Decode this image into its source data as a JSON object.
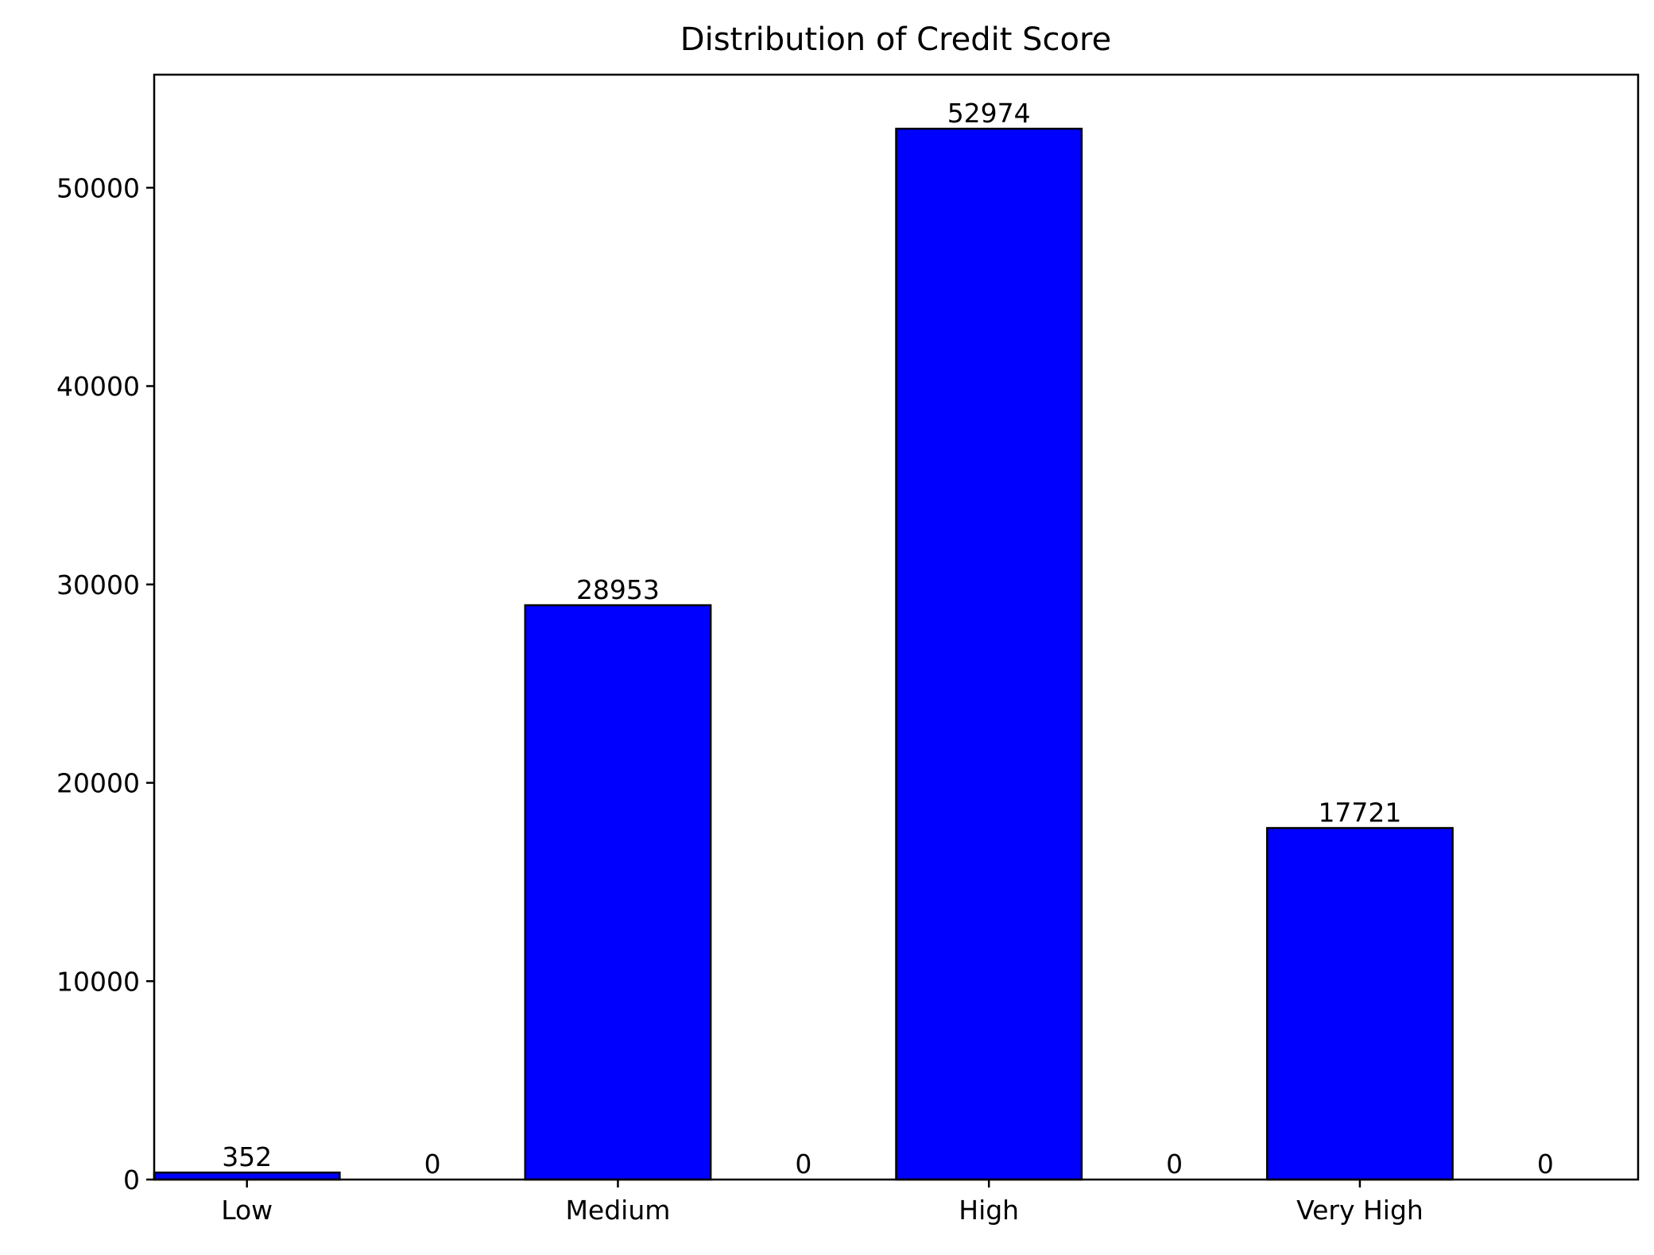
{
  "chart_data": {
    "type": "bar",
    "title": "Distribution of Credit Score",
    "xlabel": "",
    "ylabel": "",
    "ylim": [
      0,
      55700
    ],
    "xlim": [
      -0.5,
      7.5
    ],
    "grid": false,
    "bar_width": 1.0,
    "bar_color": "#0000ff",
    "edge_color": "#000000",
    "bars": [
      {
        "x": 0,
        "value": 352,
        "label": "352"
      },
      {
        "x": 1,
        "value": 0,
        "label": "0"
      },
      {
        "x": 2,
        "value": 28953,
        "label": "28953"
      },
      {
        "x": 3,
        "value": 0,
        "label": "0"
      },
      {
        "x": 4,
        "value": 52974,
        "label": "52974"
      },
      {
        "x": 5,
        "value": 0,
        "label": "0"
      },
      {
        "x": 6,
        "value": 17721,
        "label": "17721"
      },
      {
        "x": 7,
        "value": 0,
        "label": "0"
      }
    ],
    "x_ticks": [
      {
        "x": 0,
        "label": "Low"
      },
      {
        "x": 2,
        "label": "Medium"
      },
      {
        "x": 4,
        "label": "High"
      },
      {
        "x": 6,
        "label": "Very High"
      }
    ],
    "y_ticks": [
      {
        "value": 0,
        "label": "0"
      },
      {
        "value": 10000,
        "label": "10000"
      },
      {
        "value": 20000,
        "label": "20000"
      },
      {
        "value": 30000,
        "label": "30000"
      },
      {
        "value": 40000,
        "label": "40000"
      },
      {
        "value": 50000,
        "label": "50000"
      }
    ]
  }
}
